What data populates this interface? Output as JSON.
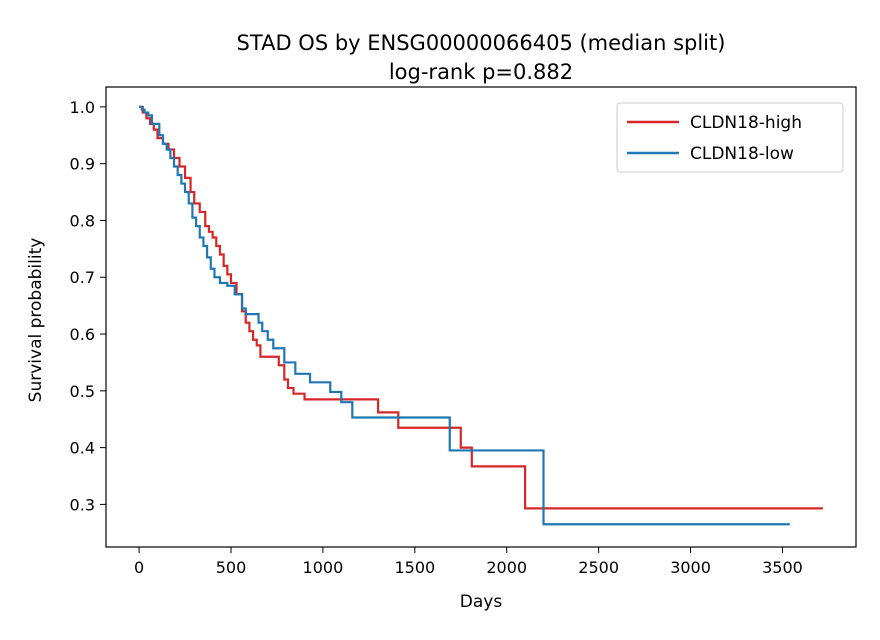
{
  "chart_data": {
    "type": "line",
    "title": "STAD OS by ENSG00000066405 (median split)",
    "subtitle": "log-rank p=0.882",
    "xlabel": "Days",
    "ylabel": "Survival probability",
    "xlim": [
      -180,
      3900
    ],
    "ylim": [
      0.225,
      1.035
    ],
    "x_ticks": [
      0,
      500,
      1000,
      1500,
      2000,
      2500,
      3000,
      3500
    ],
    "x_tick_labels": [
      "0",
      "500",
      "1000",
      "1500",
      "2000",
      "2500",
      "3000",
      "3500"
    ],
    "y_ticks": [
      0.3,
      0.4,
      0.5,
      0.6,
      0.7,
      0.8,
      0.9,
      1.0
    ],
    "y_tick_labels": [
      "0.3",
      "0.4",
      "0.5",
      "0.6",
      "0.7",
      "0.8",
      "0.9",
      "1.0"
    ],
    "grid": false,
    "legend_position": "top-right",
    "step": true,
    "series": [
      {
        "name": "CLDN18-high",
        "color": "#d62728",
        "x": [
          0,
          20,
          40,
          60,
          80,
          100,
          130,
          160,
          190,
          220,
          250,
          280,
          300,
          330,
          360,
          380,
          400,
          420,
          440,
          460,
          480,
          500,
          530,
          560,
          580,
          600,
          620,
          640,
          660,
          700,
          760,
          790,
          810,
          840,
          900,
          1300,
          1410,
          1750,
          1810,
          2100,
          3720
        ],
        "y": [
          1.0,
          0.99,
          0.98,
          0.97,
          0.96,
          0.945,
          0.935,
          0.925,
          0.91,
          0.895,
          0.875,
          0.85,
          0.83,
          0.815,
          0.79,
          0.78,
          0.77,
          0.755,
          0.74,
          0.72,
          0.705,
          0.69,
          0.67,
          0.64,
          0.62,
          0.605,
          0.59,
          0.58,
          0.56,
          0.56,
          0.545,
          0.52,
          0.505,
          0.495,
          0.485,
          0.462,
          0.435,
          0.4,
          0.367,
          0.293,
          0.293
        ]
      },
      {
        "name": "CLDN18-low",
        "color": "#1f77b4",
        "x": [
          0,
          15,
          30,
          50,
          70,
          110,
          130,
          150,
          170,
          190,
          210,
          230,
          250,
          270,
          290,
          310,
          330,
          350,
          370,
          390,
          410,
          440,
          480,
          520,
          560,
          580,
          650,
          670,
          700,
          730,
          790,
          850,
          930,
          1040,
          1100,
          1160,
          1690,
          2200,
          3540
        ],
        "y": [
          1.0,
          0.995,
          0.99,
          0.985,
          0.97,
          0.95,
          0.935,
          0.925,
          0.91,
          0.895,
          0.88,
          0.865,
          0.85,
          0.83,
          0.805,
          0.79,
          0.77,
          0.755,
          0.735,
          0.715,
          0.7,
          0.69,
          0.685,
          0.67,
          0.645,
          0.635,
          0.62,
          0.605,
          0.59,
          0.575,
          0.55,
          0.53,
          0.515,
          0.498,
          0.48,
          0.453,
          0.395,
          0.265,
          0.265
        ]
      }
    ]
  }
}
